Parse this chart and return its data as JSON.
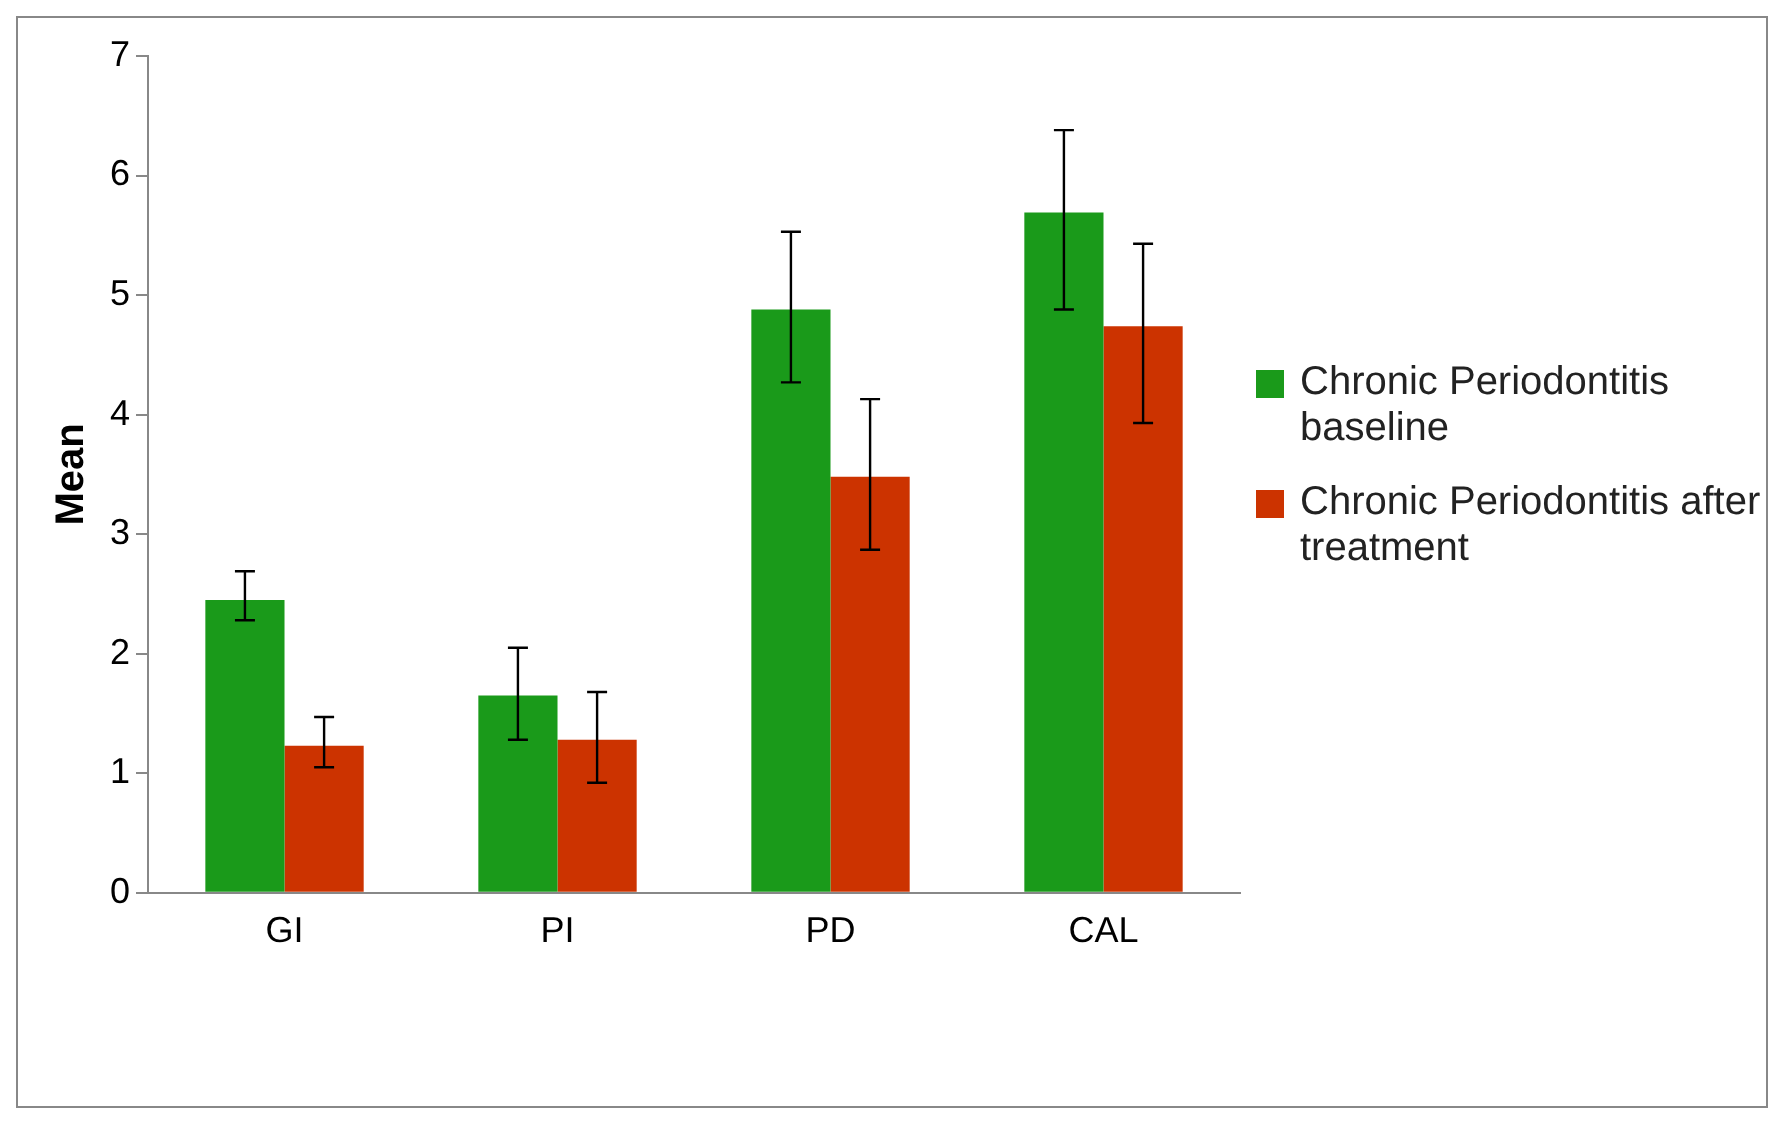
{
  "chart_data": {
    "type": "bar",
    "ylabel": "Mean",
    "categories": [
      "GI",
      "PI",
      "PD",
      "CAL"
    ],
    "series": [
      {
        "name": "Chronic Periodontitis baseline",
        "color": "#1a9a1a",
        "values": [
          2.45,
          1.65,
          4.88,
          5.69
        ],
        "errors": [
          [
            2.28,
            2.69
          ],
          [
            1.28,
            2.05
          ],
          [
            4.27,
            5.53
          ],
          [
            4.88,
            6.38
          ]
        ]
      },
      {
        "name": "Chronic Periodontitis after treatment",
        "color": "#cc3300",
        "values": [
          1.23,
          1.28,
          3.48,
          4.74
        ],
        "errors": [
          [
            1.05,
            1.47
          ],
          [
            0.92,
            1.68
          ],
          [
            2.87,
            4.13
          ],
          [
            3.93,
            5.43
          ]
        ]
      }
    ],
    "ylim": [
      0,
      7
    ],
    "yticks": [
      0,
      1,
      2,
      3,
      4,
      5,
      6,
      7
    ],
    "grid": false,
    "legend": "right"
  }
}
